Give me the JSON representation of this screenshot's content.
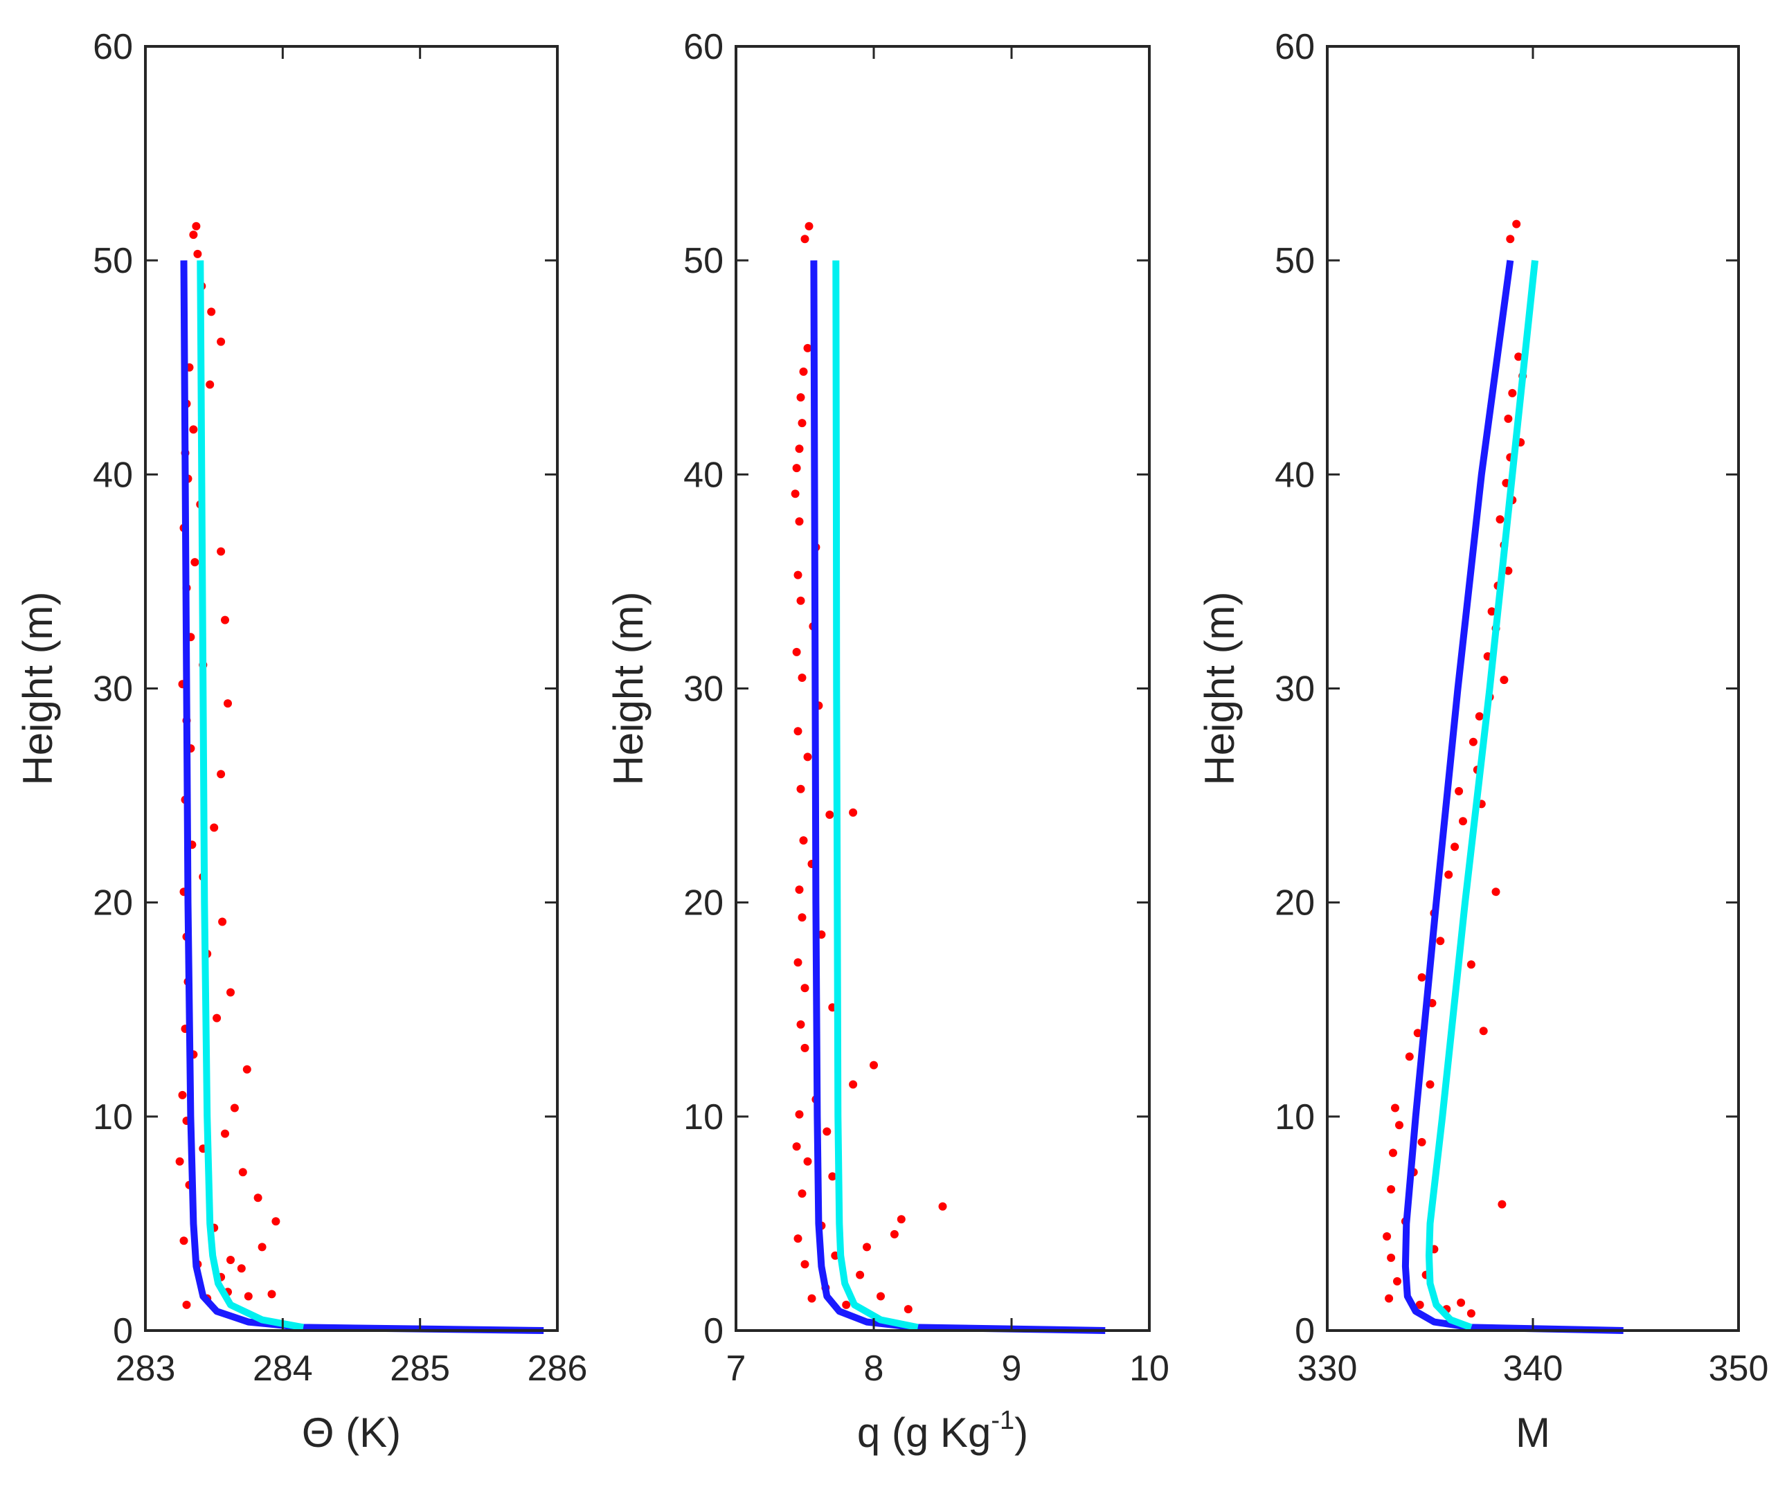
{
  "figure": {
    "colors": {
      "observations": "#ff0000",
      "fit_blue": "#1a1aff",
      "fit_cyan": "#00f0f0",
      "axes": "#262626"
    }
  },
  "chart_data": [
    {
      "type": "scatter",
      "title": "",
      "xlabel": "Θ (K)",
      "ylabel": "Height (m)",
      "xlim": [
        283,
        286
      ],
      "ylim": [
        0,
        60
      ],
      "xticks": [
        "283",
        "284",
        "285",
        "286"
      ],
      "yticks": [
        "0",
        "10",
        "20",
        "30",
        "40",
        "50",
        "60"
      ],
      "series": [
        {
          "name": "observations",
          "kind": "scatter",
          "color": "#ff0000",
          "points": [
            [
              283.3,
              1.2
            ],
            [
              283.45,
              1.5
            ],
            [
              283.6,
              1.8
            ],
            [
              283.75,
              1.6
            ],
            [
              283.92,
              1.7
            ],
            [
              283.55,
              2.5
            ],
            [
              283.7,
              2.9
            ],
            [
              283.38,
              3.1
            ],
            [
              283.62,
              3.3
            ],
            [
              283.85,
              3.9
            ],
            [
              283.28,
              4.2
            ],
            [
              283.5,
              4.8
            ],
            [
              283.95,
              5.1
            ],
            [
              283.82,
              6.2
            ],
            [
              283.32,
              6.8
            ],
            [
              283.71,
              7.4
            ],
            [
              283.25,
              7.9
            ],
            [
              283.42,
              8.5
            ],
            [
              283.58,
              9.2
            ],
            [
              283.3,
              9.8
            ],
            [
              283.65,
              10.4
            ],
            [
              283.27,
              11.0
            ],
            [
              283.74,
              12.2
            ],
            [
              283.35,
              12.9
            ],
            [
              283.29,
              14.1
            ],
            [
              283.52,
              14.6
            ],
            [
              283.62,
              15.8
            ],
            [
              283.31,
              16.3
            ],
            [
              283.45,
              17.6
            ],
            [
              283.3,
              18.4
            ],
            [
              283.56,
              19.1
            ],
            [
              283.28,
              20.5
            ],
            [
              283.42,
              21.2
            ],
            [
              283.34,
              22.7
            ],
            [
              283.5,
              23.5
            ],
            [
              283.29,
              24.8
            ],
            [
              283.55,
              26.0
            ],
            [
              283.33,
              27.2
            ],
            [
              283.3,
              28.5
            ],
            [
              283.6,
              29.3
            ],
            [
              283.27,
              30.2
            ],
            [
              283.42,
              31.1
            ],
            [
              283.33,
              32.4
            ],
            [
              283.58,
              33.2
            ],
            [
              283.3,
              34.7
            ],
            [
              283.36,
              35.9
            ],
            [
              283.55,
              36.4
            ],
            [
              283.28,
              37.5
            ],
            [
              283.4,
              38.6
            ],
            [
              283.31,
              39.8
            ],
            [
              283.29,
              41.0
            ],
            [
              283.35,
              42.1
            ],
            [
              283.3,
              43.3
            ],
            [
              283.47,
              44.2
            ],
            [
              283.32,
              45.0
            ],
            [
              283.55,
              46.2
            ],
            [
              283.48,
              47.6
            ],
            [
              283.41,
              48.8
            ],
            [
              283.38,
              50.3
            ],
            [
              283.35,
              51.2
            ],
            [
              283.37,
              51.6
            ]
          ]
        },
        {
          "name": "fit-1",
          "kind": "line",
          "color": "#1a1aff",
          "points": [
            [
              285.9,
              0.0
            ],
            [
              284.15,
              0.15
            ],
            [
              283.75,
              0.4
            ],
            [
              283.52,
              0.9
            ],
            [
              283.42,
              1.6
            ],
            [
              283.37,
              3.0
            ],
            [
              283.35,
              5.0
            ],
            [
              283.33,
              10.0
            ],
            [
              283.31,
              20.0
            ],
            [
              283.3,
              30.0
            ],
            [
              283.29,
              40.0
            ],
            [
              283.28,
              50.0
            ]
          ]
        },
        {
          "name": "fit-2",
          "kind": "line",
          "color": "#00f0f0",
          "points": [
            [
              284.15,
              0.15
            ],
            [
              283.85,
              0.5
            ],
            [
              283.62,
              1.2
            ],
            [
              283.53,
              2.2
            ],
            [
              283.49,
              3.5
            ],
            [
              283.47,
              5.0
            ],
            [
              283.45,
              10.0
            ],
            [
              283.43,
              20.0
            ],
            [
              283.42,
              30.0
            ],
            [
              283.41,
              40.0
            ],
            [
              283.4,
              50.0
            ]
          ]
        }
      ]
    },
    {
      "type": "scatter",
      "title": "",
      "xlabel_prefix": "q (g Kg",
      "xlabel_sup": "-1",
      "xlabel_suffix": ")",
      "ylabel": "Height (m)",
      "xlim": [
        7,
        10
      ],
      "ylim": [
        0,
        60
      ],
      "xticks": [
        "7",
        "8",
        "9",
        "10"
      ],
      "yticks": [
        "0",
        "10",
        "20",
        "30",
        "40",
        "50",
        "60"
      ],
      "series": [
        {
          "name": "observations",
          "kind": "scatter",
          "color": "#ff0000",
          "points": [
            [
              7.55,
              1.5
            ],
            [
              7.8,
              1.2
            ],
            [
              8.05,
              1.6
            ],
            [
              8.25,
              1.0
            ],
            [
              7.65,
              2.0
            ],
            [
              7.9,
              2.6
            ],
            [
              7.5,
              3.1
            ],
            [
              7.72,
              3.5
            ],
            [
              7.95,
              3.9
            ],
            [
              7.45,
              4.3
            ],
            [
              7.62,
              4.9
            ],
            [
              8.2,
              5.2
            ],
            [
              8.15,
              4.5
            ],
            [
              8.5,
              5.8
            ],
            [
              7.48,
              6.4
            ],
            [
              7.7,
              7.2
            ],
            [
              7.52,
              7.9
            ],
            [
              7.44,
              8.6
            ],
            [
              7.66,
              9.3
            ],
            [
              7.46,
              10.1
            ],
            [
              7.58,
              10.8
            ],
            [
              7.85,
              11.5
            ],
            [
              8.0,
              12.4
            ],
            [
              7.5,
              13.2
            ],
            [
              7.47,
              14.3
            ],
            [
              7.7,
              15.1
            ],
            [
              7.5,
              16.0
            ],
            [
              7.45,
              17.2
            ],
            [
              7.62,
              18.5
            ],
            [
              7.48,
              19.3
            ],
            [
              7.46,
              20.6
            ],
            [
              7.55,
              21.8
            ],
            [
              7.49,
              22.9
            ],
            [
              7.68,
              24.1
            ],
            [
              7.85,
              24.2
            ],
            [
              7.47,
              25.3
            ],
            [
              7.52,
              26.8
            ],
            [
              7.45,
              28.0
            ],
            [
              7.6,
              29.2
            ],
            [
              7.48,
              30.5
            ],
            [
              7.44,
              31.7
            ],
            [
              7.56,
              32.9
            ],
            [
              7.47,
              34.1
            ],
            [
              7.45,
              35.3
            ],
            [
              7.58,
              36.6
            ],
            [
              7.46,
              37.8
            ],
            [
              7.43,
              39.1
            ],
            [
              7.44,
              40.3
            ],
            [
              7.46,
              41.2
            ],
            [
              7.48,
              42.4
            ],
            [
              7.47,
              43.6
            ],
            [
              7.49,
              44.8
            ],
            [
              7.52,
              45.9
            ],
            [
              7.5,
              51.0
            ],
            [
              7.53,
              51.6
            ]
          ]
        },
        {
          "name": "fit-1",
          "kind": "line",
          "color": "#1a1aff",
          "points": [
            [
              9.68,
              0.0
            ],
            [
              8.3,
              0.15
            ],
            [
              7.95,
              0.4
            ],
            [
              7.75,
              0.9
            ],
            [
              7.66,
              1.6
            ],
            [
              7.62,
              3.0
            ],
            [
              7.6,
              5.0
            ],
            [
              7.59,
              10.0
            ],
            [
              7.58,
              20.0
            ],
            [
              7.575,
              30.0
            ],
            [
              7.57,
              40.0
            ],
            [
              7.565,
              50.0
            ]
          ]
        },
        {
          "name": "fit-2",
          "kind": "line",
          "color": "#00f0f0",
          "points": [
            [
              8.32,
              0.15
            ],
            [
              8.05,
              0.5
            ],
            [
              7.86,
              1.2
            ],
            [
              7.79,
              2.2
            ],
            [
              7.76,
              3.5
            ],
            [
              7.75,
              5.0
            ],
            [
              7.74,
              10.0
            ],
            [
              7.735,
              20.0
            ],
            [
              7.73,
              30.0
            ],
            [
              7.728,
              40.0
            ],
            [
              7.725,
              50.0
            ]
          ]
        }
      ]
    },
    {
      "type": "scatter",
      "title": "",
      "xlabel": "M",
      "ylabel": "Height (m)",
      "xlim": [
        330,
        350
      ],
      "ylim": [
        0,
        60
      ],
      "xticks": [
        "330",
        "340",
        "350"
      ],
      "yticks": [
        "0",
        "10",
        "20",
        "30",
        "40",
        "50",
        "60"
      ],
      "series": [
        {
          "name": "observations",
          "kind": "scatter",
          "color": "#ff0000",
          "points": [
            [
              333.0,
              1.5
            ],
            [
              334.5,
              1.2
            ],
            [
              335.8,
              1.0
            ],
            [
              336.5,
              1.3
            ],
            [
              337.0,
              0.8
            ],
            [
              333.4,
              2.3
            ],
            [
              334.8,
              2.6
            ],
            [
              333.1,
              3.4
            ],
            [
              335.2,
              3.8
            ],
            [
              332.9,
              4.4
            ],
            [
              333.8,
              5.1
            ],
            [
              338.5,
              5.9
            ],
            [
              333.1,
              6.6
            ],
            [
              334.2,
              7.4
            ],
            [
              333.2,
              8.3
            ],
            [
              334.6,
              8.8
            ],
            [
              333.5,
              9.6
            ],
            [
              333.3,
              10.4
            ],
            [
              335.0,
              11.5
            ],
            [
              334.0,
              12.8
            ],
            [
              334.4,
              13.9
            ],
            [
              337.6,
              14.0
            ],
            [
              335.1,
              15.3
            ],
            [
              334.6,
              16.5
            ],
            [
              337.0,
              17.1
            ],
            [
              335.5,
              18.2
            ],
            [
              335.2,
              19.5
            ],
            [
              338.2,
              20.5
            ],
            [
              335.9,
              21.3
            ],
            [
              336.2,
              22.6
            ],
            [
              336.6,
              23.8
            ],
            [
              337.5,
              24.6
            ],
            [
              336.4,
              25.2
            ],
            [
              337.3,
              26.2
            ],
            [
              337.1,
              27.5
            ],
            [
              337.4,
              28.7
            ],
            [
              337.9,
              29.6
            ],
            [
              338.6,
              30.4
            ],
            [
              337.8,
              31.5
            ],
            [
              338.2,
              32.8
            ],
            [
              338.0,
              33.6
            ],
            [
              338.3,
              34.8
            ],
            [
              338.8,
              35.5
            ],
            [
              338.6,
              36.7
            ],
            [
              338.4,
              37.9
            ],
            [
              339.0,
              38.8
            ],
            [
              338.7,
              39.6
            ],
            [
              338.9,
              40.8
            ],
            [
              339.4,
              41.5
            ],
            [
              338.8,
              42.6
            ],
            [
              339.0,
              43.8
            ],
            [
              339.5,
              44.6
            ],
            [
              339.3,
              45.5
            ],
            [
              338.9,
              51.0
            ],
            [
              339.2,
              51.7
            ]
          ]
        },
        {
          "name": "fit-1",
          "kind": "line",
          "color": "#1a1aff",
          "points": [
            [
              344.4,
              0.0
            ],
            [
              337.0,
              0.15
            ],
            [
              335.2,
              0.4
            ],
            [
              334.3,
              0.9
            ],
            [
              333.9,
              1.6
            ],
            [
              333.8,
              3.0
            ],
            [
              333.85,
              5.0
            ],
            [
              334.3,
              10.0
            ],
            [
              335.3,
              20.0
            ],
            [
              336.35,
              30.0
            ],
            [
              337.5,
              40.0
            ],
            [
              338.9,
              50.0
            ]
          ]
        },
        {
          "name": "fit-2",
          "kind": "line",
          "color": "#00f0f0",
          "points": [
            [
              337.0,
              0.15
            ],
            [
              336.0,
              0.5
            ],
            [
              335.3,
              1.2
            ],
            [
              335.0,
              2.2
            ],
            [
              334.95,
              3.5
            ],
            [
              335.0,
              5.0
            ],
            [
              335.6,
              10.0
            ],
            [
              336.7,
              20.0
            ],
            [
              337.9,
              30.0
            ],
            [
              339.0,
              40.0
            ],
            [
              340.1,
              50.0
            ]
          ]
        }
      ]
    }
  ]
}
